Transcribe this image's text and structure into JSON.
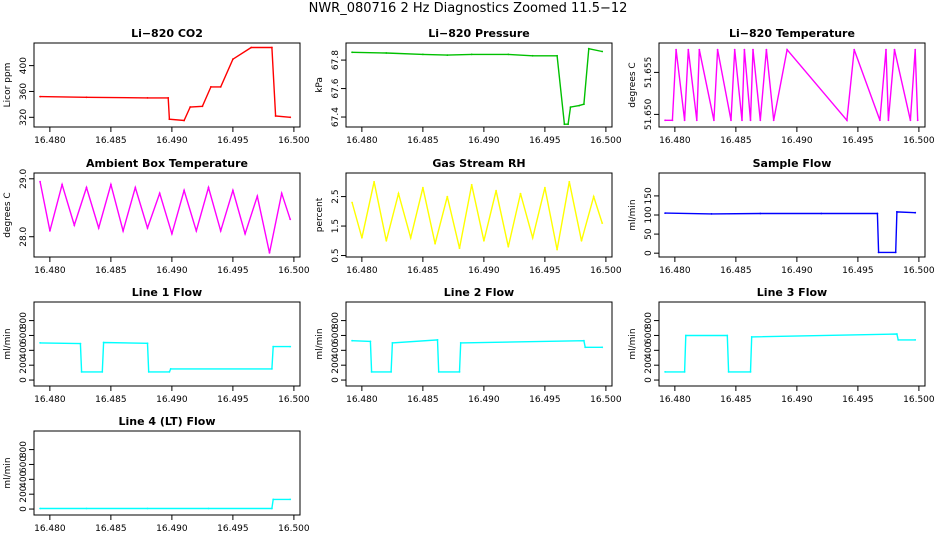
{
  "page_title": "NWR_080716  2 Hz Diagnostics Zoomed 11.5−12",
  "chart_data": [
    {
      "type": "line",
      "title": "Li−820 CO2",
      "xlabel": "",
      "ylabel": "Licor ppm",
      "color": "#ff0000",
      "xlim": [
        16.4787,
        16.5005
      ],
      "ylim": [
        305,
        435
      ],
      "xticks": [
        "16.480",
        "16.485",
        "16.490",
        "16.495",
        "16.500"
      ],
      "yticks": [
        "320",
        "360",
        "400"
      ],
      "series": [
        {
          "name": "CO2",
          "x": [
            16.4792,
            16.483,
            16.488,
            16.4897,
            16.4898,
            16.491,
            16.4915,
            16.4925,
            16.4932,
            16.494,
            16.495,
            16.4965,
            16.4982,
            16.4985,
            16.4997
          ],
          "y": [
            352,
            351,
            350,
            350,
            317,
            315,
            336,
            337,
            367,
            367,
            410,
            428,
            428,
            322,
            320
          ]
        }
      ]
    },
    {
      "type": "line",
      "title": "Li−820 Pressure",
      "xlabel": "",
      "ylabel": "kPa",
      "color": "#00c000",
      "xlim": [
        16.4787,
        16.5005
      ],
      "ylim": [
        67.33,
        67.92
      ],
      "xticks": [
        "16.480",
        "16.485",
        "16.490",
        "16.495",
        "16.500"
      ],
      "yticks": [
        "67.4",
        "67.6",
        "67.8"
      ],
      "series": [
        {
          "name": "Pressure",
          "x": [
            16.4792,
            16.482,
            16.485,
            16.487,
            16.489,
            16.492,
            16.494,
            16.496,
            16.4966,
            16.4969,
            16.4971,
            16.4978,
            16.4982,
            16.4986,
            16.4997
          ],
          "y": [
            67.855,
            67.85,
            67.84,
            67.835,
            67.84,
            67.84,
            67.83,
            67.83,
            67.35,
            67.35,
            67.47,
            67.48,
            67.49,
            67.88,
            67.86
          ]
        }
      ]
    },
    {
      "type": "line",
      "title": "Li−820 Temperature",
      "xlabel": "",
      "ylabel": "degrees C",
      "color": "#ff00ff",
      "xlim": [
        16.4787,
        16.5005
      ],
      "ylim": [
        51.6485,
        51.6585
      ],
      "xticks": [
        "16.480",
        "16.485",
        "16.490",
        "16.495",
        "16.500"
      ],
      "yticks": [
        "51.650",
        "51.655"
      ],
      "series": [
        {
          "name": "Temperature",
          "x": [
            16.4792,
            16.4798,
            16.4801,
            16.4808,
            16.4811,
            16.4818,
            16.482,
            16.4832,
            16.4835,
            16.4846,
            16.4849,
            16.4855,
            16.4857,
            16.4862,
            16.4864,
            16.487,
            16.4875,
            16.4881,
            16.4892,
            16.4941,
            16.4947,
            16.4968,
            16.4973,
            16.4975,
            16.498,
            16.4993,
            16.4997,
            16.4999
          ],
          "y": [
            51.6493,
            51.6493,
            51.6577,
            51.6493,
            51.6577,
            51.6493,
            51.6577,
            51.6493,
            51.6577,
            51.6493,
            51.6577,
            51.6493,
            51.6577,
            51.6493,
            51.6577,
            51.6493,
            51.6577,
            51.6493,
            51.6577,
            51.6493,
            51.6577,
            51.6493,
            51.6577,
            51.6493,
            51.6577,
            51.6493,
            51.6577,
            51.6493
          ]
        }
      ]
    },
    {
      "type": "line",
      "title": "Ambient Box Temperature",
      "xlabel": "",
      "ylabel": "degrees C",
      "color": "#ff00ff",
      "xlim": [
        16.4787,
        16.5005
      ],
      "ylim": [
        27.65,
        29.1
      ],
      "xticks": [
        "16.480",
        "16.485",
        "16.490",
        "16.495",
        "16.500"
      ],
      "yticks": [
        "28.0",
        "29.0"
      ],
      "series": [
        {
          "name": "Ambient",
          "x": [
            16.4792,
            16.48,
            16.481,
            16.482,
            16.483,
            16.484,
            16.485,
            16.486,
            16.487,
            16.488,
            16.489,
            16.49,
            16.491,
            16.492,
            16.493,
            16.494,
            16.495,
            16.496,
            16.497,
            16.498,
            16.499,
            16.4997
          ],
          "y": [
            28.95,
            28.1,
            28.9,
            28.2,
            28.85,
            28.15,
            28.9,
            28.1,
            28.85,
            28.15,
            28.75,
            28.05,
            28.8,
            28.1,
            28.85,
            28.1,
            28.8,
            28.05,
            28.7,
            27.72,
            28.75,
            28.3
          ]
        }
      ]
    },
    {
      "type": "line",
      "title": "Gas Stream RH",
      "xlabel": "",
      "ylabel": "percent",
      "color": "#ffff00",
      "xlim": [
        16.4787,
        16.5005
      ],
      "ylim": [
        0.45,
        3.3
      ],
      "xticks": [
        "16.480",
        "16.485",
        "16.490",
        "16.495",
        "16.500"
      ],
      "yticks": [
        "0.5",
        "1.5",
        "2.5"
      ],
      "series": [
        {
          "name": "RH",
          "x": [
            16.4792,
            16.48,
            16.481,
            16.482,
            16.483,
            16.484,
            16.485,
            16.486,
            16.487,
            16.488,
            16.489,
            16.49,
            16.491,
            16.492,
            16.493,
            16.494,
            16.495,
            16.496,
            16.497,
            16.498,
            16.499,
            16.4997
          ],
          "y": [
            2.3,
            1.1,
            3.0,
            1.0,
            2.6,
            1.1,
            2.8,
            0.9,
            2.5,
            0.75,
            2.9,
            1.0,
            2.7,
            0.8,
            2.6,
            1.1,
            2.8,
            0.7,
            3.0,
            1.0,
            2.5,
            1.6
          ]
        }
      ]
    },
    {
      "type": "line",
      "title": "Sample Flow",
      "xlabel": "",
      "ylabel": "ml/min",
      "color": "#0000ff",
      "xlim": [
        16.4787,
        16.5005
      ],
      "ylim": [
        -10,
        210
      ],
      "xticks": [
        "16.480",
        "16.485",
        "16.490",
        "16.495",
        "16.500"
      ],
      "yticks": [
        "0",
        "50",
        "100",
        "150"
      ],
      "series": [
        {
          "name": "Sample Flow",
          "x": [
            16.4792,
            16.483,
            16.487,
            16.492,
            16.4966,
            16.4967,
            16.4981,
            16.4982,
            16.4997
          ],
          "y": [
            105,
            103,
            104,
            104,
            104,
            2,
            2,
            108,
            106
          ]
        }
      ]
    },
    {
      "type": "line",
      "title": "Line 1 Flow",
      "xlabel": "",
      "ylabel": "ml/min",
      "color": "#00ffff",
      "xlim": [
        16.4787,
        16.5005
      ],
      "ylim": [
        -80,
        1050
      ],
      "xticks": [
        "16.480",
        "16.485",
        "16.490",
        "16.495",
        "16.500"
      ],
      "yticks": [
        "0",
        "200",
        "400",
        "600",
        "800"
      ],
      "series": [
        {
          "name": "Line 1",
          "x": [
            16.4792,
            16.4825,
            16.4826,
            16.4843,
            16.4844,
            16.488,
            16.4881,
            16.4898,
            16.4899,
            16.4982,
            16.4983,
            16.4997
          ],
          "y": [
            500,
            490,
            110,
            110,
            505,
            495,
            110,
            110,
            150,
            150,
            450,
            450
          ]
        }
      ]
    },
    {
      "type": "line",
      "title": "Line 2 Flow",
      "xlabel": "",
      "ylabel": "ml/min",
      "color": "#00ffff",
      "xlim": [
        16.4787,
        16.5005
      ],
      "ylim": [
        -80,
        1050
      ],
      "xticks": [
        "16.480",
        "16.485",
        "16.490",
        "16.495",
        "16.500"
      ],
      "yticks": [
        "0",
        "200",
        "400",
        "600",
        "800"
      ],
      "series": [
        {
          "name": "Line 2",
          "x": [
            16.4792,
            16.4807,
            16.4808,
            16.4824,
            16.4825,
            16.4862,
            16.4863,
            16.488,
            16.4881,
            16.4982,
            16.4983,
            16.4997
          ],
          "y": [
            530,
            520,
            110,
            110,
            500,
            540,
            110,
            110,
            500,
            530,
            440,
            440
          ]
        }
      ]
    },
    {
      "type": "line",
      "title": "Line 3 Flow",
      "xlabel": "",
      "ylabel": "ml/min",
      "color": "#00ffff",
      "xlim": [
        16.4787,
        16.5005
      ],
      "ylim": [
        -80,
        1050
      ],
      "xticks": [
        "16.480",
        "16.485",
        "16.490",
        "16.495",
        "16.500"
      ],
      "yticks": [
        "0",
        "200",
        "400",
        "600",
        "800"
      ],
      "series": [
        {
          "name": "Line 3",
          "x": [
            16.4792,
            16.4808,
            16.4809,
            16.4843,
            16.4844,
            16.4862,
            16.4863,
            16.4982,
            16.4983,
            16.4997
          ],
          "y": [
            110,
            110,
            600,
            600,
            110,
            110,
            580,
            620,
            540,
            540
          ]
        }
      ]
    },
    {
      "type": "line",
      "title": "Line 4 (LT) Flow",
      "xlabel": "",
      "ylabel": "ml/min",
      "color": "#00ffff",
      "xlim": [
        16.4787,
        16.5005
      ],
      "ylim": [
        -80,
        1050
      ],
      "xticks": [
        "16.480",
        "16.485",
        "16.490",
        "16.495",
        "16.500"
      ],
      "yticks": [
        "0",
        "200",
        "400",
        "600",
        "800"
      ],
      "series": [
        {
          "name": "Line 4",
          "x": [
            16.4792,
            16.483,
            16.488,
            16.493,
            16.4982,
            16.4983,
            16.4997
          ],
          "y": [
            8,
            8,
            8,
            8,
            8,
            130,
            130
          ]
        }
      ]
    }
  ]
}
